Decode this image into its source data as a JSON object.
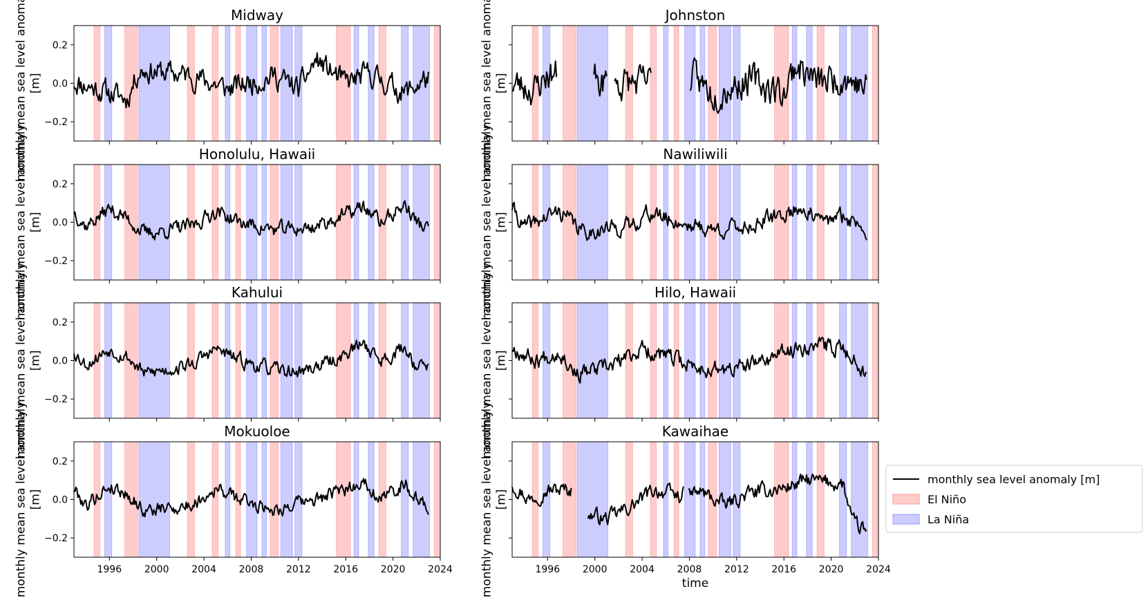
{
  "chart_data": {
    "type": "line",
    "layout": "4x2 grid of panels, shared x-axis (time) and shared y-axis",
    "xlabel": "time",
    "ylabel": "monthly mean sea level anomaly [m]",
    "xlim": [
      1993.0,
      2024.0
    ],
    "ylim": [
      -0.3,
      0.3
    ],
    "xticks": [
      1996,
      2000,
      2004,
      2008,
      2012,
      2016,
      2020,
      2024
    ],
    "yticks": [
      -0.2,
      0.0,
      0.2
    ],
    "ytick_labels": [
      "−0.2",
      "0.0",
      "0.2"
    ],
    "legend": {
      "placement": "lower right (outside, beside Kawaihae panel)",
      "entries": [
        {
          "label": "monthly sea level anomaly [m]",
          "kind": "line",
          "color": "#000000"
        },
        {
          "label": "El Niño",
          "kind": "patch",
          "color": "#ff9999"
        },
        {
          "label": "La Niña",
          "kind": "patch",
          "color": "#9999ff"
        }
      ]
    },
    "el_nino_periods": [
      [
        1994.7,
        1995.2
      ],
      [
        1997.3,
        1998.4
      ],
      [
        2002.6,
        2003.2
      ],
      [
        2004.7,
        2005.2
      ],
      [
        2006.7,
        2007.1
      ],
      [
        2009.6,
        2010.3
      ],
      [
        2015.2,
        2016.4
      ],
      [
        2018.8,
        2019.4
      ],
      [
        2023.5,
        2024.0
      ]
    ],
    "la_nina_periods": [
      [
        1995.6,
        1996.2
      ],
      [
        1998.5,
        2001.1
      ],
      [
        2005.8,
        2006.2
      ],
      [
        2007.6,
        2008.5
      ],
      [
        2008.9,
        2009.3
      ],
      [
        2010.5,
        2011.5
      ],
      [
        2011.7,
        2012.3
      ],
      [
        2016.7,
        2017.1
      ],
      [
        2017.9,
        2018.4
      ],
      [
        2020.7,
        2021.3
      ],
      [
        2021.7,
        2023.1
      ]
    ],
    "panels": [
      {
        "name": "Midway",
        "seed": 11,
        "noise": 0.05,
        "start": 1993.0,
        "end": 2023.0,
        "gaps": [],
        "trend": [
          [
            1993,
            0.01
          ],
          [
            1997.5,
            -0.08
          ],
          [
            1998.5,
            0.07
          ],
          [
            2003,
            0.04
          ],
          [
            2006,
            -0.03
          ],
          [
            2010,
            0.04
          ],
          [
            2012,
            -0.03
          ],
          [
            2013.5,
            0.12
          ],
          [
            2016,
            0.0
          ],
          [
            2018,
            0.05
          ],
          [
            2021,
            -0.05
          ],
          [
            2023,
            0.03
          ]
        ]
      },
      {
        "name": "Johnston",
        "seed": 23,
        "noise": 0.07,
        "start": 1993.0,
        "end": 2023.0,
        "gaps": [
          [
            1996.8,
            1999.9
          ],
          [
            2001.0,
            2001.6
          ],
          [
            2004.8,
            2008.0
          ]
        ],
        "trend": [
          [
            1993,
            0.0
          ],
          [
            1995,
            -0.03
          ],
          [
            1996,
            0.05
          ],
          [
            2001,
            0.0
          ],
          [
            2004,
            0.0
          ],
          [
            2008,
            0.04
          ],
          [
            2010,
            -0.05
          ],
          [
            2013,
            0.02
          ],
          [
            2016,
            -0.05
          ],
          [
            2017,
            0.1
          ],
          [
            2019,
            0.0
          ],
          [
            2021,
            0.04
          ],
          [
            2023,
            -0.03
          ]
        ]
      },
      {
        "name": "Honolulu, Hawaii",
        "seed": 37,
        "noise": 0.032,
        "start": 1993.0,
        "end": 2023.0,
        "gaps": [],
        "trend": [
          [
            1993,
            0.06
          ],
          [
            1994,
            -0.02
          ],
          [
            1996,
            0.07
          ],
          [
            1997.5,
            0.02
          ],
          [
            1999,
            -0.06
          ],
          [
            2003,
            -0.02
          ],
          [
            2005,
            0.06
          ],
          [
            2007,
            0.0
          ],
          [
            2010,
            -0.04
          ],
          [
            2013,
            -0.03
          ],
          [
            2016,
            0.04
          ],
          [
            2017.5,
            0.08
          ],
          [
            2019,
            0.0
          ],
          [
            2021,
            0.09
          ],
          [
            2022,
            0.0
          ],
          [
            2023,
            -0.04
          ]
        ]
      },
      {
        "name": "Nawiliwili",
        "seed": 41,
        "noise": 0.035,
        "start": 1993.0,
        "end": 2023.0,
        "gaps": [],
        "trend": [
          [
            1993,
            0.08
          ],
          [
            1994,
            -0.03
          ],
          [
            1997,
            0.06
          ],
          [
            1999,
            -0.05
          ],
          [
            2003,
            -0.02
          ],
          [
            2004.5,
            0.05
          ],
          [
            2007,
            0.0
          ],
          [
            2010,
            -0.04
          ],
          [
            2013,
            -0.02
          ],
          [
            2016,
            0.04
          ],
          [
            2017.5,
            0.08
          ],
          [
            2019,
            0.0
          ],
          [
            2021,
            0.03
          ],
          [
            2022,
            0.0
          ],
          [
            2023,
            -0.03
          ]
        ]
      },
      {
        "name": "Kahului",
        "seed": 53,
        "noise": 0.03,
        "start": 1993.0,
        "end": 2023.0,
        "gaps": [],
        "trend": [
          [
            1993,
            0.05
          ],
          [
            1994,
            -0.02
          ],
          [
            1996,
            0.06
          ],
          [
            1997.5,
            0.02
          ],
          [
            1999,
            -0.07
          ],
          [
            2003,
            -0.02
          ],
          [
            2005,
            0.06
          ],
          [
            2007,
            0.0
          ],
          [
            2010,
            -0.05
          ],
          [
            2012,
            -0.06
          ],
          [
            2015,
            0.0
          ],
          [
            2017.5,
            0.09
          ],
          [
            2019,
            0.0
          ],
          [
            2021,
            0.07
          ],
          [
            2022,
            -0.03
          ],
          [
            2023,
            -0.03
          ]
        ]
      },
      {
        "name": "Hilo, Hawaii",
        "seed": 67,
        "noise": 0.035,
        "start": 1993.0,
        "end": 2023.0,
        "gaps": [],
        "trend": [
          [
            1993,
            0.07
          ],
          [
            1995,
            0.0
          ],
          [
            1997,
            0.05
          ],
          [
            1998.5,
            -0.07
          ],
          [
            2001,
            -0.04
          ],
          [
            2004,
            0.06
          ],
          [
            2006,
            0.02
          ],
          [
            2009,
            -0.04
          ],
          [
            2011,
            -0.05
          ],
          [
            2013,
            -0.03
          ],
          [
            2016,
            0.04
          ],
          [
            2018,
            0.08
          ],
          [
            2021,
            0.07
          ],
          [
            2022,
            0.0
          ],
          [
            2023,
            -0.06
          ]
        ]
      },
      {
        "name": "Mokuoloe",
        "seed": 79,
        "noise": 0.03,
        "start": 1993.0,
        "end": 2023.0,
        "gaps": [],
        "trend": [
          [
            1993,
            0.06
          ],
          [
            1994,
            -0.03
          ],
          [
            1996,
            0.07
          ],
          [
            1997.5,
            0.03
          ],
          [
            1999,
            -0.06
          ],
          [
            2003,
            -0.03
          ],
          [
            2005,
            0.06
          ],
          [
            2007,
            0.0
          ],
          [
            2010,
            -0.05
          ],
          [
            2013,
            -0.01
          ],
          [
            2016,
            0.05
          ],
          [
            2017.5,
            0.1
          ],
          [
            2019,
            0.0
          ],
          [
            2021,
            0.09
          ],
          [
            2022,
            0.0
          ],
          [
            2023,
            -0.05
          ]
        ]
      },
      {
        "name": "Kawaihae",
        "seed": 97,
        "noise": 0.032,
        "start": 1993.0,
        "end": 2023.0,
        "gaps": [
          [
            1998.0,
            1999.4
          ],
          [
            2007.5,
            2007.9
          ]
        ],
        "trend": [
          [
            1993,
            0.08
          ],
          [
            1994.5,
            0.0
          ],
          [
            1996,
            0.05
          ],
          [
            1998,
            0.05
          ],
          [
            1999.5,
            -0.08
          ],
          [
            2001,
            -0.1
          ],
          [
            2003,
            -0.04
          ],
          [
            2005,
            0.05
          ],
          [
            2007,
            0.02
          ],
          [
            2009,
            0.04
          ],
          [
            2011,
            -0.03
          ],
          [
            2013,
            0.03
          ],
          [
            2016,
            0.06
          ],
          [
            2018,
            0.1
          ],
          [
            2021,
            0.08
          ],
          [
            2021.8,
            -0.12
          ],
          [
            2023,
            -0.17
          ]
        ]
      }
    ]
  }
}
